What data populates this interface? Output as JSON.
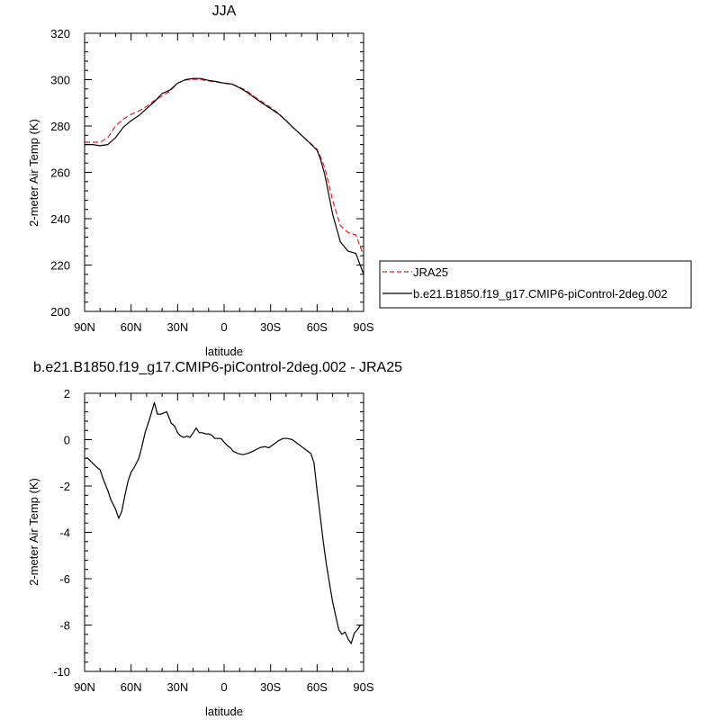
{
  "chart_data": [
    {
      "type": "line",
      "title": "JJA",
      "xlabel": "latitude",
      "ylabel": "2-meter Air Temp (K)",
      "xlim": [
        90,
        -90
      ],
      "ylim": [
        200,
        320
      ],
      "x_ticks": [
        90,
        60,
        30,
        0,
        -30,
        -60,
        -90
      ],
      "x_tick_labels": [
        "90N",
        "60N",
        "30N",
        "0",
        "30S",
        "60S",
        "90S"
      ],
      "y_ticks": [
        200,
        220,
        240,
        260,
        280,
        300,
        320
      ],
      "y_tick_labels": [
        "200",
        "220",
        "240",
        "260",
        "280",
        "300",
        "320"
      ],
      "grid": false,
      "legend_placement": "right",
      "series": [
        {
          "name": "JRA25",
          "color": "#e8211b",
          "dash": "dashed",
          "x": [
            90,
            85,
            80,
            75,
            70,
            65,
            60,
            55,
            50,
            45,
            40,
            35,
            30,
            25,
            20,
            15,
            10,
            5,
            0,
            -5,
            -10,
            -15,
            -20,
            -25,
            -30,
            -35,
            -40,
            -45,
            -50,
            -55,
            -60,
            -62,
            -65,
            -70,
            -75,
            -80,
            -85,
            -90
          ],
          "y": [
            273,
            273,
            273,
            275,
            280,
            283,
            285,
            286.5,
            288.5,
            291,
            293,
            295,
            298.5,
            299.8,
            300.2,
            300,
            299.4,
            299,
            298.5,
            298.1,
            296.8,
            295,
            292.5,
            290.2,
            288,
            285.5,
            282.3,
            279,
            276,
            273,
            270,
            267,
            262,
            248,
            237,
            234,
            233,
            224
          ]
        },
        {
          "name": "b.e21.B1850.f19_g17.CMIP6-piControl-2deg.002",
          "color": "#000000",
          "dash": "solid",
          "x": [
            90,
            85,
            80,
            75,
            70,
            65,
            60,
            55,
            50,
            45,
            40,
            35,
            30,
            25,
            20,
            15,
            10,
            5,
            0,
            -5,
            -10,
            -15,
            -20,
            -25,
            -30,
            -35,
            -40,
            -45,
            -50,
            -55,
            -60,
            -62,
            -65,
            -70,
            -75,
            -80,
            -85,
            -90
          ],
          "y": [
            272,
            272,
            271.5,
            272,
            275,
            279.5,
            282.3,
            284.5,
            287.5,
            290.5,
            294,
            295.5,
            298.5,
            300,
            300.5,
            300.5,
            299.7,
            299.2,
            298.5,
            298.1,
            296.5,
            294.5,
            292,
            289.7,
            287.5,
            285.3,
            282.3,
            279,
            276,
            272.8,
            269.5,
            266,
            259,
            242,
            230,
            226,
            225,
            216
          ]
        }
      ]
    },
    {
      "type": "line",
      "title": "b.e21.B1850.f19_g17.CMIP6-piControl-2deg.002 - JRA25",
      "xlabel": "latitude",
      "ylabel": "2-meter Air Temp (K)",
      "xlim": [
        90,
        -90
      ],
      "ylim": [
        -10,
        2
      ],
      "x_ticks": [
        90,
        60,
        30,
        0,
        -30,
        -60,
        -90
      ],
      "x_tick_labels": [
        "90N",
        "60N",
        "30N",
        "0",
        "30S",
        "60S",
        "90S"
      ],
      "y_ticks": [
        -10,
        -8,
        -6,
        -4,
        -2,
        0,
        2
      ],
      "y_tick_labels": [
        "-10",
        "-8",
        "-6",
        "-4",
        "-2",
        "0",
        "2"
      ],
      "grid": false,
      "series": [
        {
          "color": "#000000",
          "dash": "solid",
          "x": [
            90,
            88,
            85,
            82,
            80,
            78,
            75,
            73,
            70,
            68,
            66,
            64,
            62,
            60,
            58,
            55,
            53,
            51,
            48,
            45,
            43,
            41,
            39,
            37,
            34,
            32,
            30,
            28,
            26,
            24,
            22,
            20,
            18,
            16,
            14,
            12,
            10,
            8,
            6,
            4,
            2,
            0,
            -2,
            -4,
            -6,
            -9,
            -12,
            -15,
            -17,
            -20,
            -23,
            -26,
            -29,
            -32,
            -35,
            -38,
            -41,
            -44,
            -47,
            -50,
            -53,
            -56,
            -58,
            -60,
            -62,
            -64,
            -66,
            -68,
            -70,
            -72,
            -74,
            -76,
            -78,
            -80,
            -82,
            -84,
            -86,
            -88,
            -90
          ],
          "y": [
            -0.8,
            -0.8,
            -1,
            -1.2,
            -1.3,
            -1.7,
            -2.2,
            -2.6,
            -3,
            -3.4,
            -3.1,
            -2.4,
            -1.8,
            -1.4,
            -1.2,
            -0.8,
            -0.3,
            0.3,
            0.9,
            1.6,
            1.1,
            1.1,
            1.15,
            1.2,
            0.7,
            0.6,
            0.3,
            0.15,
            0.1,
            0.15,
            0.1,
            0.3,
            0.5,
            0.3,
            0.3,
            0.25,
            0.25,
            0.2,
            0.05,
            0.05,
            0.05,
            -0.1,
            -0.25,
            -0.35,
            -0.5,
            -0.6,
            -0.65,
            -0.6,
            -0.55,
            -0.45,
            -0.35,
            -0.3,
            -0.35,
            -0.2,
            -0.05,
            0.05,
            0.05,
            0,
            -0.15,
            -0.3,
            -0.45,
            -0.6,
            -1.0,
            -2.2,
            -3.3,
            -4.4,
            -5.4,
            -6.2,
            -7.0,
            -7.6,
            -8.2,
            -8.4,
            -8.3,
            -8.6,
            -8.8,
            -8.35,
            -8.2,
            -8.0,
            -8.0
          ]
        }
      ]
    }
  ]
}
